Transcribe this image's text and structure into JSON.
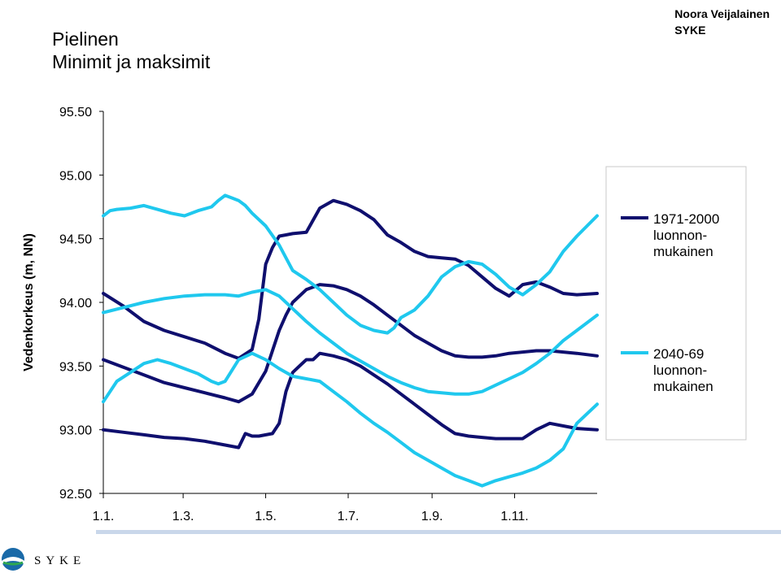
{
  "title": {
    "line1": "Pielinen",
    "line2": "Minimit ja maksimit"
  },
  "author": {
    "name": "Noora Veijalainen",
    "org": "SYKE"
  },
  "logo": {
    "text": "SYKE"
  },
  "colors": {
    "series1": "#0f0f6e",
    "series2": "#1fc8ee"
  },
  "chart_data": {
    "type": "line",
    "ylabel": "Vedenkorkeus (m, NN)",
    "ylim": [
      92.5,
      95.5
    ],
    "yticks": [
      "95.50",
      "95.00",
      "94.50",
      "94.00",
      "93.50",
      "93.00",
      "92.50"
    ],
    "xticks": [
      "1.1.",
      "1.3.",
      "1.5.",
      "1.7.",
      "1.9.",
      "1.11."
    ],
    "xtick_days": [
      0,
      59,
      120,
      181,
      243,
      304
    ],
    "xlim": [
      0,
      365
    ],
    "legend_position": "right",
    "series": [
      {
        "name": "1971-2000 luonnon- mukainen",
        "color": "#0f0f6e",
        "values": [
          {
            "x": [
              0,
              15,
              30,
              45,
              60,
              75,
              90,
              100,
              110,
              115,
              120,
              125,
              130,
              135,
              140,
              150,
              160,
              170,
              180,
              190,
              200,
              210,
              220,
              230,
              240,
              250,
              260,
              270,
              280,
              290,
              300,
              310,
              320,
              330,
              340,
              350,
              365
            ],
            "y": [
              94.07,
              93.97,
              93.85,
              93.78,
              93.73,
              93.68,
              93.6,
              93.56,
              93.63,
              93.87,
              94.3,
              94.43,
              94.52,
              94.53,
              94.54,
              94.55,
              94.74,
              94.8,
              94.77,
              94.72,
              94.65,
              94.53,
              94.47,
              94.4,
              94.36,
              94.35,
              94.34,
              94.29,
              94.2,
              94.11,
              94.05,
              94.14,
              94.16,
              94.12,
              94.07,
              94.06,
              94.07
            ]
          },
          {
            "x": [
              0,
              15,
              30,
              45,
              60,
              75,
              90,
              100,
              110,
              120,
              125,
              130,
              135,
              140,
              150,
              160,
              170,
              180,
              190,
              200,
              210,
              220,
              230,
              240,
              250,
              260,
              270,
              280,
              290,
              300,
              310,
              320,
              330,
              340,
              350,
              365
            ],
            "y": [
              93.55,
              93.49,
              93.43,
              93.37,
              93.33,
              93.29,
              93.25,
              93.22,
              93.28,
              93.46,
              93.62,
              93.78,
              93.9,
              94.0,
              94.1,
              94.14,
              94.13,
              94.1,
              94.05,
              93.98,
              93.9,
              93.82,
              93.74,
              93.68,
              93.62,
              93.58,
              93.57,
              93.57,
              93.58,
              93.6,
              93.61,
              93.62,
              93.62,
              93.61,
              93.6,
              93.58
            ]
          },
          {
            "x": [
              0,
              15,
              30,
              45,
              60,
              75,
              90,
              100,
              105,
              110,
              115,
              125,
              130,
              135,
              140,
              145,
              150,
              155,
              160,
              170,
              180,
              190,
              200,
              210,
              220,
              230,
              240,
              250,
              260,
              270,
              280,
              290,
              300,
              310,
              320,
              330,
              340,
              350,
              365
            ],
            "y": [
              93.0,
              92.98,
              92.96,
              92.94,
              92.93,
              92.91,
              92.88,
              92.86,
              92.97,
              92.95,
              92.95,
              92.97,
              93.05,
              93.3,
              93.45,
              93.5,
              93.55,
              93.55,
              93.6,
              93.58,
              93.55,
              93.5,
              93.43,
              93.36,
              93.28,
              93.2,
              93.12,
              93.04,
              92.97,
              92.95,
              92.94,
              92.93,
              92.93,
              92.93,
              93.0,
              93.05,
              93.03,
              93.01,
              93.0
            ]
          }
        ]
      },
      {
        "name": "2040-69 luonnon- mukainen",
        "color": "#1fc8ee",
        "values": [
          {
            "x": [
              0,
              5,
              10,
              20,
              30,
              40,
              50,
              60,
              70,
              80,
              85,
              90,
              95,
              100,
              105,
              110,
              120,
              130,
              135,
              140,
              150,
              160,
              170,
              180,
              190,
              200,
              210,
              215,
              220,
              230,
              240,
              250,
              260,
              270,
              280,
              290,
              300,
              310,
              320,
              330,
              340,
              350,
              365
            ],
            "y": [
              94.68,
              94.72,
              94.73,
              94.74,
              94.76,
              94.73,
              94.7,
              94.68,
              94.72,
              94.75,
              94.8,
              94.84,
              94.82,
              94.8,
              94.76,
              94.7,
              94.6,
              94.45,
              94.35,
              94.25,
              94.18,
              94.1,
              94.0,
              93.9,
              93.82,
              93.78,
              93.76,
              93.8,
              93.88,
              93.94,
              94.05,
              94.2,
              94.28,
              94.32,
              94.3,
              94.22,
              94.12,
              94.06,
              94.14,
              94.24,
              94.4,
              94.52,
              94.68
            ]
          },
          {
            "x": [
              0,
              15,
              30,
              45,
              60,
              75,
              90,
              100,
              110,
              120,
              130,
              140,
              150,
              160,
              170,
              180,
              190,
              200,
              210,
              220,
              230,
              240,
              250,
              260,
              270,
              280,
              290,
              300,
              310,
              320,
              330,
              340,
              350,
              365
            ],
            "y": [
              93.92,
              93.96,
              94.0,
              94.03,
              94.05,
              94.06,
              94.06,
              94.05,
              94.08,
              94.1,
              94.05,
              93.95,
              93.85,
              93.76,
              93.68,
              93.6,
              93.54,
              93.48,
              93.42,
              93.37,
              93.33,
              93.3,
              93.29,
              93.28,
              93.28,
              93.3,
              93.35,
              93.4,
              93.45,
              93.52,
              93.6,
              93.7,
              93.78,
              93.9
            ]
          },
          {
            "x": [
              0,
              5,
              10,
              20,
              30,
              40,
              50,
              60,
              70,
              80,
              85,
              90,
              100,
              110,
              120,
              130,
              140,
              150,
              160,
              170,
              180,
              190,
              200,
              210,
              220,
              230,
              240,
              250,
              260,
              270,
              280,
              290,
              300,
              310,
              320,
              330,
              340,
              350,
              365
            ],
            "y": [
              93.22,
              93.3,
              93.38,
              93.45,
              93.52,
              93.55,
              93.52,
              93.48,
              93.44,
              93.38,
              93.36,
              93.38,
              93.55,
              93.6,
              93.55,
              93.48,
              93.42,
              93.4,
              93.38,
              93.3,
              93.22,
              93.13,
              93.05,
              92.98,
              92.9,
              92.82,
              92.76,
              92.7,
              92.64,
              92.6,
              92.56,
              92.6,
              92.63,
              92.66,
              92.7,
              92.76,
              92.85,
              93.05,
              93.2
            ]
          }
        ]
      }
    ]
  }
}
